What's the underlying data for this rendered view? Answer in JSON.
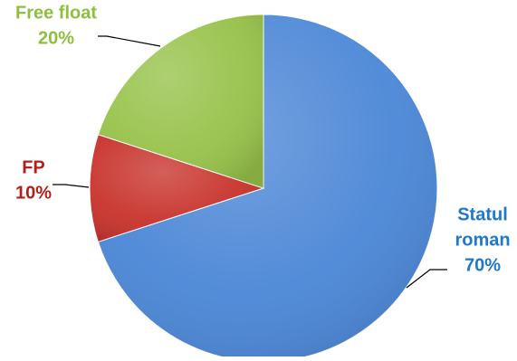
{
  "chart_data": {
    "type": "pie",
    "title": "",
    "slices": [
      {
        "label_lines": [
          "Statul",
          "roman"
        ],
        "value": 70,
        "value_label": "70%",
        "color": "#4a86d6",
        "label_color": "#1f78c8"
      },
      {
        "label_lines": [
          "FP"
        ],
        "value": 10,
        "value_label": "10%",
        "color": "#c8322b",
        "label_color": "#b3201c"
      },
      {
        "label_lines": [
          "Free float"
        ],
        "value": 20,
        "value_label": "20%",
        "color": "#97c24a",
        "label_color": "#8dc03f"
      }
    ],
    "start_angle_deg": 0,
    "direction": "clockwise",
    "legend": "none"
  }
}
